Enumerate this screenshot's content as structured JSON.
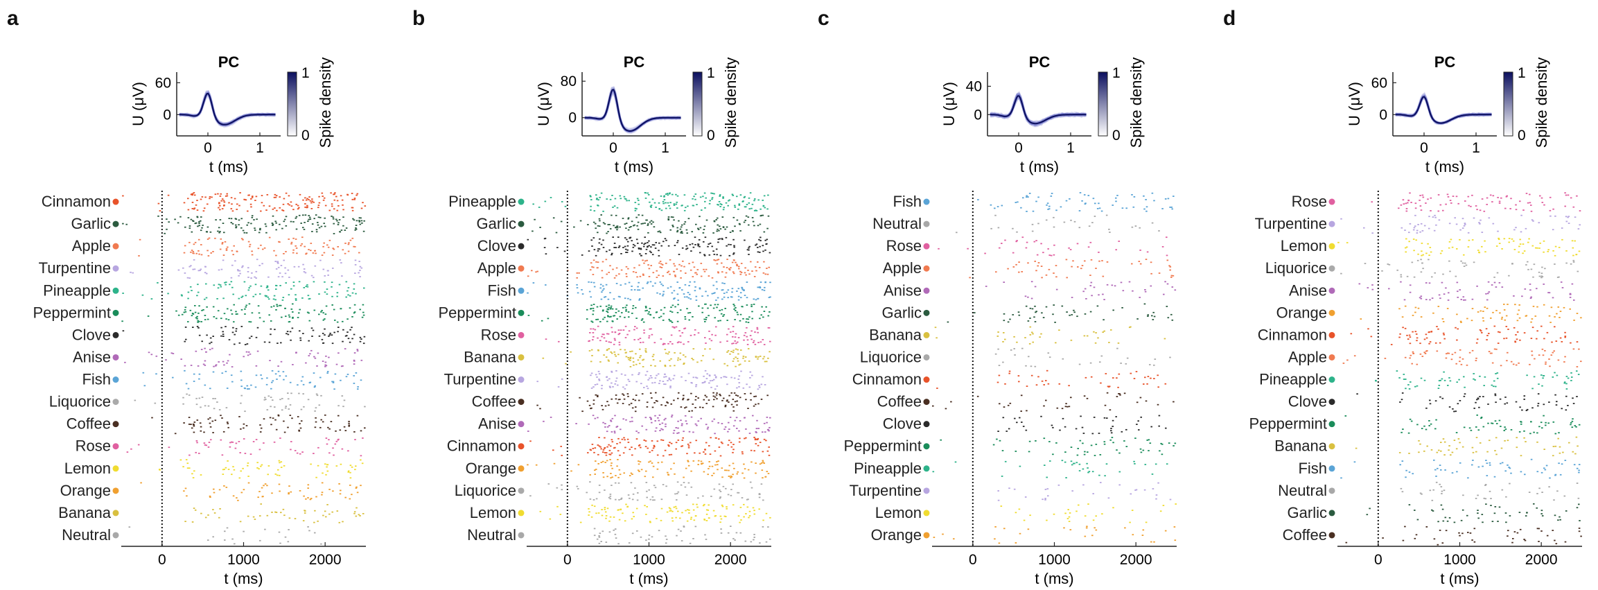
{
  "panels": [
    {
      "label": "a",
      "waveform": {
        "title": "PC",
        "ylabel": "U (μV)",
        "xlabel": "t (ms)",
        "yticks": [
          0,
          60
        ],
        "ylim": [
          -40,
          80
        ],
        "xticks": [
          0,
          1
        ],
        "xlim": [
          -0.6,
          1.4
        ],
        "colorbar_label": "Spike density",
        "colorbar_ticks": [
          0,
          1
        ],
        "peak_uV": 45
      },
      "raster": {
        "xlabel": "t (ms)",
        "xticks": [
          0,
          1000,
          2000
        ],
        "xlim": [
          -500,
          2500
        ],
        "onset_ms": 0,
        "rows": [
          {
            "odor": "Cinnamon",
            "color": "#e8532a",
            "density": 1.0
          },
          {
            "odor": "Garlic",
            "color": "#2b5b3f",
            "density": 0.95
          },
          {
            "odor": "Apple",
            "color": "#f07a50",
            "density": 0.6
          },
          {
            "odor": "Turpentine",
            "color": "#b7a6e0",
            "density": 0.5
          },
          {
            "odor": "Pineapple",
            "color": "#2db38a",
            "density": 0.6
          },
          {
            "odor": "Peppermint",
            "color": "#1a8c5a",
            "density": 0.7
          },
          {
            "odor": "Clove",
            "color": "#2b2b2b",
            "density": 0.5
          },
          {
            "odor": "Anise",
            "color": "#b06ab8",
            "density": 0.4
          },
          {
            "odor": "Fish",
            "color": "#5aa4d6",
            "density": 0.4
          },
          {
            "odor": "Liquorice",
            "color": "#aaaaaa",
            "density": 0.3
          },
          {
            "odor": "Coffee",
            "color": "#4a2f22",
            "density": 0.45
          },
          {
            "odor": "Rose",
            "color": "#e060a0",
            "density": 0.3
          },
          {
            "odor": "Lemon",
            "color": "#f0dc30",
            "density": 0.35
          },
          {
            "odor": "Orange",
            "color": "#f0a030",
            "density": 0.3
          },
          {
            "odor": "Banana",
            "color": "#d9c040",
            "density": 0.25
          },
          {
            "odor": "Neutral",
            "color": "#a8a8a8",
            "density": 0.05
          }
        ]
      }
    },
    {
      "label": "b",
      "waveform": {
        "title": "PC",
        "ylabel": "U (μV)",
        "xlabel": "t (ms)",
        "yticks": [
          0,
          80
        ],
        "ylim": [
          -40,
          100
        ],
        "xticks": [
          0,
          1
        ],
        "xlim": [
          -0.6,
          1.4
        ],
        "colorbar_label": "Spike density",
        "colorbar_ticks": [
          0,
          1
        ],
        "peak_uV": 70
      },
      "raster": {
        "xlabel": "t (ms)",
        "xticks": [
          0,
          1000,
          2000
        ],
        "xlim": [
          -500,
          2500
        ],
        "onset_ms": 0,
        "rows": [
          {
            "odor": "Pineapple",
            "color": "#2db38a",
            "density": 1.0
          },
          {
            "odor": "Garlic",
            "color": "#2b5b3f",
            "density": 0.9
          },
          {
            "odor": "Clove",
            "color": "#2b2b2b",
            "density": 1.0
          },
          {
            "odor": "Apple",
            "color": "#f07a50",
            "density": 0.9
          },
          {
            "odor": "Fish",
            "color": "#5aa4d6",
            "density": 0.9
          },
          {
            "odor": "Peppermint",
            "color": "#1a8c5a",
            "density": 1.0
          },
          {
            "odor": "Rose",
            "color": "#e060a0",
            "density": 0.8
          },
          {
            "odor": "Banana",
            "color": "#d9c040",
            "density": 0.75
          },
          {
            "odor": "Turpentine",
            "color": "#b7a6e0",
            "density": 0.8
          },
          {
            "odor": "Coffee",
            "color": "#4a2f22",
            "density": 0.75
          },
          {
            "odor": "Anise",
            "color": "#b06ab8",
            "density": 0.7
          },
          {
            "odor": "Cinnamon",
            "color": "#e8532a",
            "density": 0.85
          },
          {
            "odor": "Orange",
            "color": "#f0a030",
            "density": 0.7
          },
          {
            "odor": "Liquorice",
            "color": "#aaaaaa",
            "density": 0.5
          },
          {
            "odor": "Lemon",
            "color": "#f0dc30",
            "density": 0.7
          },
          {
            "odor": "Neutral",
            "color": "#a8a8a8",
            "density": 0.3
          }
        ]
      }
    },
    {
      "label": "c",
      "waveform": {
        "title": "PC",
        "ylabel": "U (μV)",
        "xlabel": "t (ms)",
        "yticks": [
          0,
          40
        ],
        "ylim": [
          -30,
          60
        ],
        "xticks": [
          0,
          1
        ],
        "xlim": [
          -0.6,
          1.4
        ],
        "colorbar_label": "Spike density",
        "colorbar_ticks": [
          0,
          1
        ],
        "peak_uV": 30
      },
      "raster": {
        "xlabel": "t (ms)",
        "xticks": [
          0,
          1000,
          2000
        ],
        "xlim": [
          -500,
          2500
        ],
        "onset_ms": 0,
        "rows": [
          {
            "odor": "Fish",
            "color": "#5aa4d6",
            "density": 0.35
          },
          {
            "odor": "Neutral",
            "color": "#a8a8a8",
            "density": 0.1
          },
          {
            "odor": "Rose",
            "color": "#e060a0",
            "density": 0.15
          },
          {
            "odor": "Apple",
            "color": "#f07a50",
            "density": 0.25
          },
          {
            "odor": "Anise",
            "color": "#b06ab8",
            "density": 0.15
          },
          {
            "odor": "Garlic",
            "color": "#2b5b3f",
            "density": 0.25
          },
          {
            "odor": "Banana",
            "color": "#d9c040",
            "density": 0.15
          },
          {
            "odor": "Liquorice",
            "color": "#aaaaaa",
            "density": 0.1
          },
          {
            "odor": "Cinnamon",
            "color": "#e8532a",
            "density": 0.2
          },
          {
            "odor": "Coffee",
            "color": "#4a2f22",
            "density": 0.15
          },
          {
            "odor": "Clove",
            "color": "#2b2b2b",
            "density": 0.2
          },
          {
            "odor": "Peppermint",
            "color": "#1a8c5a",
            "density": 0.25
          },
          {
            "odor": "Pineapple",
            "color": "#2db38a",
            "density": 0.15
          },
          {
            "odor": "Turpentine",
            "color": "#b7a6e0",
            "density": 0.1
          },
          {
            "odor": "Lemon",
            "color": "#f0dc30",
            "density": 0.1
          },
          {
            "odor": "Orange",
            "color": "#f0a030",
            "density": 0.1
          }
        ]
      }
    },
    {
      "label": "d",
      "waveform": {
        "title": "PC",
        "ylabel": "U (μV)",
        "xlabel": "t (ms)",
        "yticks": [
          0,
          60
        ],
        "ylim": [
          -40,
          80
        ],
        "xticks": [
          0,
          1
        ],
        "xlim": [
          -0.6,
          1.4
        ],
        "colorbar_label": "Spike density",
        "colorbar_ticks": [
          0,
          1
        ],
        "peak_uV": 38
      },
      "raster": {
        "xlabel": "t (ms)",
        "xticks": [
          0,
          1000,
          2000
        ],
        "xlim": [
          -500,
          2500
        ],
        "onset_ms": 0,
        "rows": [
          {
            "odor": "Rose",
            "color": "#e060a0",
            "density": 0.5
          },
          {
            "odor": "Turpentine",
            "color": "#b7a6e0",
            "density": 0.35
          },
          {
            "odor": "Lemon",
            "color": "#f0dc30",
            "density": 0.45
          },
          {
            "odor": "Liquorice",
            "color": "#aaaaaa",
            "density": 0.3
          },
          {
            "odor": "Anise",
            "color": "#b06ab8",
            "density": 0.35
          },
          {
            "odor": "Orange",
            "color": "#f0a030",
            "density": 0.35
          },
          {
            "odor": "Cinnamon",
            "color": "#e8532a",
            "density": 0.45
          },
          {
            "odor": "Apple",
            "color": "#f07a50",
            "density": 0.4
          },
          {
            "odor": "Pineapple",
            "color": "#2db38a",
            "density": 0.35
          },
          {
            "odor": "Clove",
            "color": "#2b2b2b",
            "density": 0.3
          },
          {
            "odor": "Peppermint",
            "color": "#1a8c5a",
            "density": 0.35
          },
          {
            "odor": "Banana",
            "color": "#d9c040",
            "density": 0.3
          },
          {
            "odor": "Fish",
            "color": "#5aa4d6",
            "density": 0.3
          },
          {
            "odor": "Neutral",
            "color": "#a8a8a8",
            "density": 0.15
          },
          {
            "odor": "Garlic",
            "color": "#2b5b3f",
            "density": 0.25
          },
          {
            "odor": "Coffee",
            "color": "#4a2f22",
            "density": 0.2
          }
        ]
      }
    }
  ],
  "chart_data": [
    {
      "type": "scatter",
      "panel": "a",
      "title": "PC",
      "xlabel": "t (ms)",
      "xlim": [
        -500,
        2500
      ],
      "categories": [
        "Cinnamon",
        "Garlic",
        "Apple",
        "Turpentine",
        "Pineapple",
        "Peppermint",
        "Clove",
        "Anise",
        "Fish",
        "Liquorice",
        "Coffee",
        "Rose",
        "Lemon",
        "Orange",
        "Banana",
        "Neutral"
      ],
      "legend": "per-row colored markers"
    },
    {
      "type": "scatter",
      "panel": "b",
      "title": "PC",
      "xlabel": "t (ms)",
      "xlim": [
        -500,
        2500
      ],
      "categories": [
        "Pineapple",
        "Garlic",
        "Clove",
        "Apple",
        "Fish",
        "Peppermint",
        "Rose",
        "Banana",
        "Turpentine",
        "Coffee",
        "Anise",
        "Cinnamon",
        "Orange",
        "Liquorice",
        "Lemon",
        "Neutral"
      ]
    },
    {
      "type": "scatter",
      "panel": "c",
      "title": "PC",
      "xlabel": "t (ms)",
      "xlim": [
        -500,
        2500
      ],
      "categories": [
        "Fish",
        "Neutral",
        "Rose",
        "Apple",
        "Anise",
        "Garlic",
        "Banana",
        "Liquorice",
        "Cinnamon",
        "Coffee",
        "Clove",
        "Peppermint",
        "Pineapple",
        "Turpentine",
        "Lemon",
        "Orange"
      ]
    },
    {
      "type": "scatter",
      "panel": "d",
      "title": "PC",
      "xlabel": "t (ms)",
      "xlim": [
        -500,
        2500
      ],
      "categories": [
        "Rose",
        "Turpentine",
        "Lemon",
        "Liquorice",
        "Anise",
        "Orange",
        "Cinnamon",
        "Apple",
        "Pineapple",
        "Clove",
        "Peppermint",
        "Banana",
        "Fish",
        "Neutral",
        "Garlic",
        "Coffee"
      ]
    }
  ]
}
